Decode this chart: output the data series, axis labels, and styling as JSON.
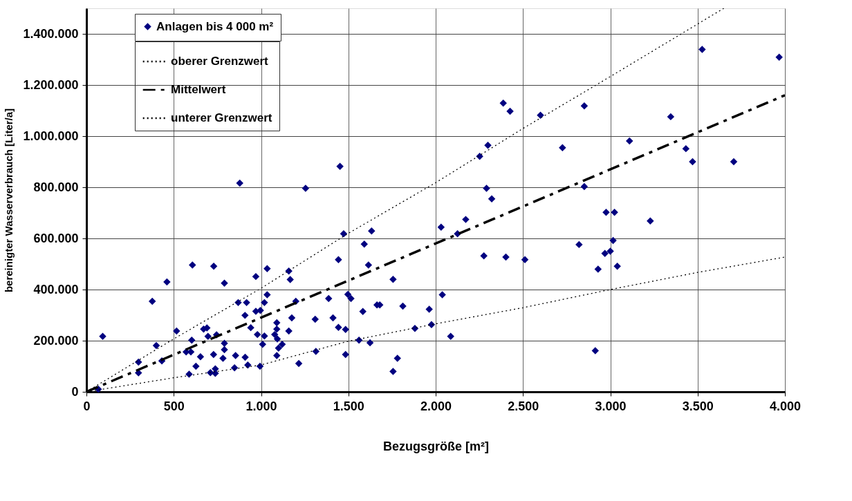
{
  "chart_data": {
    "type": "scatter",
    "xlabel": "Bezugsgröße [m²]",
    "ylabel": "bereinigter Wasserverbrauch [Liter/a]",
    "xlim": [
      0,
      4000
    ],
    "ylim": [
      0,
      1500000
    ],
    "xticks": [
      0,
      500,
      {
        "value": 1000,
        "label": "1.000"
      },
      {
        "value": 1500,
        "label": "1.500"
      },
      {
        "value": 2000,
        "label": "2.000"
      },
      {
        "value": 2500,
        "label": "2.500"
      },
      {
        "value": 3000,
        "label": "3.000"
      },
      {
        "value": 3500,
        "label": "3.500"
      },
      {
        "value": 4000,
        "label": "4.000"
      }
    ],
    "yticks": [
      0,
      {
        "value": 200000,
        "label": "200.000"
      },
      {
        "value": 400000,
        "label": "400.000"
      },
      {
        "value": 600000,
        "label": "600.000"
      },
      {
        "value": 800000,
        "label": "800.000"
      },
      {
        "value": 1000000,
        "label": "1.000.000"
      },
      {
        "value": 1200000,
        "label": "1.200.000"
      },
      {
        "value": 1400000,
        "label": "1.400.000"
      }
    ],
    "grid": true,
    "legend": "top left",
    "series": [
      {
        "name": "Anlagen bis 4 000 m²",
        "color": "#000080",
        "marker": "diamond",
        "x": [
          68,
          93,
          298,
          298,
          400,
          432,
          377,
          461,
          516,
          571,
          598,
          603,
          588,
          607,
          627,
          653,
          671,
          690,
          696,
          710,
          729,
          728,
          738,
          738,
          745,
          782,
          790,
          790,
          790,
          848,
          854,
          869,
          878,
          908,
          909,
          917,
          924,
          941,
          970,
          970,
          979,
          994,
          996,
          1009,
          1019,
          1019,
          1035,
          1035,
          1078,
          1090,
          1090,
          1090,
          1093,
          1100,
          1121,
          1159,
          1159,
          1167,
          1176,
          1199,
          1216,
          1255,
          1310,
          1314,
          1387,
          1412,
          1443,
          1443,
          1452,
          1473,
          1484,
          1484,
          1497,
          1515,
          1561,
          1583,
          1591,
          1615,
          1624,
          1633,
          1664,
          1680,
          1756,
          1756,
          1781,
          1812,
          1881,
          1963,
          1976,
          2031,
          2038,
          2086,
          2125,
          2172,
          2252,
          2276,
          2291,
          2299,
          2321,
          2387,
          2402,
          2426,
          2511,
          2600,
          2726,
          2821,
          2851,
          2851,
          2914,
          2930,
          2969,
          3000,
          3016,
          3024,
          2976,
          3040,
          3110,
          3229,
          3346,
          3433,
          3471,
          3526,
          3707,
          3967
        ],
        "values": [
          10000,
          217000,
          116000,
          74000,
          181000,
          121000,
          354000,
          430000,
          238000,
          156000,
          156000,
          202000,
          69000,
          496000,
          100000,
          137000,
          245000,
          250000,
          217000,
          75000,
          491000,
          146000,
          90000,
          72000,
          223000,
          131000,
          425000,
          190000,
          165000,
          94000,
          142000,
          349000,
          816000,
          299000,
          135000,
          349000,
          105000,
          251000,
          451000,
          315000,
          224000,
          100000,
          318000,
          186000,
          349000,
          218000,
          482000,
          380000,
          224000,
          270000,
          245000,
          142000,
          207000,
          171000,
          186000,
          472000,
          238000,
          439000,
          289000,
          354000,
          111000,
          796000,
          284000,
          158000,
          365000,
          289000,
          517000,
          252000,
          882000,
          618000,
          244000,
          146000,
          381000,
          365000,
          202000,
          314000,
          578000,
          496000,
          192000,
          629000,
          340000,
          340000,
          440000,
          80000,
          131000,
          335000,
          248000,
          323000,
          263000,
          644000,
          380000,
          217000,
          618000,
          674000,
          921000,
          532000,
          796000,
          964000,
          755000,
          1129000,
          527000,
          1097000,
          517000,
          1082000,
          955000,
          576000,
          1118000,
          803000,
          161000,
          480000,
          541000,
          550000,
          592000,
          702000,
          702000,
          491000,
          981000,
          668000,
          1076000,
          951000,
          900000,
          1339000,
          900000,
          1309000
        ]
      },
      {
        "name": "oberer Grenzwert",
        "type": "line",
        "color": "#000000",
        "line_style": "dotted",
        "x": [
          0,
          500,
          1000,
          1500,
          2000,
          2500,
          3000,
          3650
        ],
        "values": [
          0,
          207000,
          405000,
          620000,
          818000,
          1030000,
          1233000,
          1500000
        ]
      },
      {
        "name": "Mittelwert",
        "type": "line",
        "color": "#000000",
        "line_style": "dashed",
        "x": [
          0,
          4000
        ],
        "values": [
          0,
          1160000
        ]
      },
      {
        "name": "unterer Grenzwert",
        "type": "line",
        "color": "#000000",
        "line_style": "dotted",
        "x": [
          0,
          500,
          1000,
          1500,
          2000,
          2500,
          3000,
          3500,
          4000
        ],
        "values": [
          0,
          55000,
          105000,
          198000,
          266000,
          329000,
          400000,
          467000,
          527000
        ]
      }
    ]
  }
}
